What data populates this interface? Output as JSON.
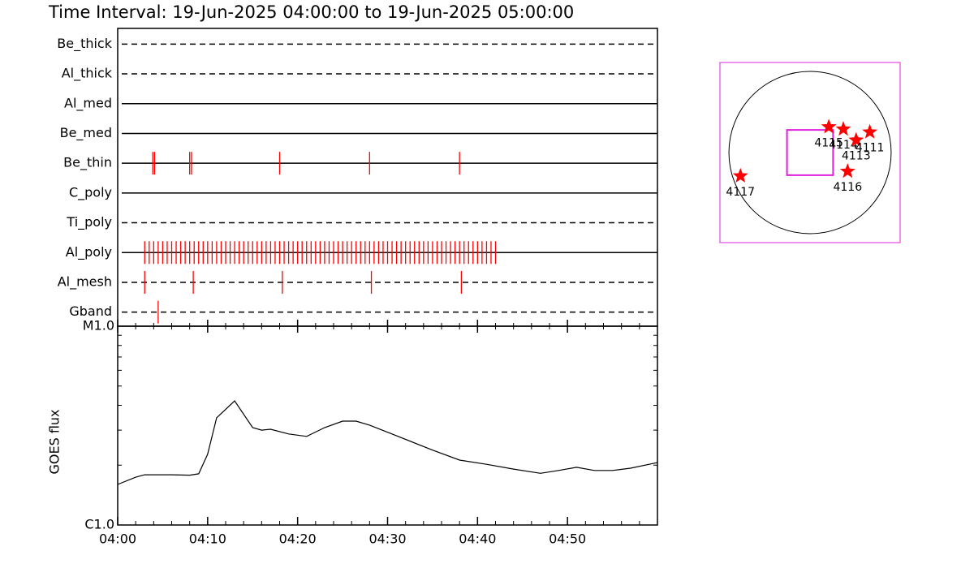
{
  "title": "Time Interval: 19-Jun-2025 04:00:00 to 19-Jun-2025 05:00:00",
  "chart_data": [
    {
      "type": "event",
      "xlim": [
        0,
        60
      ],
      "event_color": "#ff0000",
      "series": [
        {
          "name": "Be_thick",
          "dashed": true,
          "values": []
        },
        {
          "name": "Al_thick",
          "dashed": true,
          "values": []
        },
        {
          "name": "Al_med",
          "dashed": false,
          "values": []
        },
        {
          "name": "Be_med",
          "dashed": false,
          "values": []
        },
        {
          "name": "Be_thin",
          "dashed": false,
          "values": [
            3.9,
            4.1,
            8.0,
            8.2,
            18.0,
            28.0,
            38.0
          ]
        },
        {
          "name": "C_poly",
          "dashed": false,
          "values": []
        },
        {
          "name": "Ti_poly",
          "dashed": true,
          "values": []
        },
        {
          "name": "Al_poly",
          "dashed": false,
          "values": [
            3.0,
            3.5,
            4.0,
            4.5,
            5.0,
            5.5,
            6.0,
            6.5,
            7.0,
            7.5,
            8.0,
            8.5,
            9.0,
            9.5,
            10.0,
            10.5,
            11.0,
            11.5,
            12.0,
            12.5,
            13.0,
            13.5,
            14.0,
            14.5,
            15.0,
            15.5,
            16.0,
            16.5,
            17.0,
            17.5,
            18.0,
            18.5,
            19.0,
            19.5,
            20.0,
            20.5,
            21.0,
            21.5,
            22.0,
            22.5,
            23.0,
            23.5,
            24.0,
            24.5,
            25.0,
            25.5,
            26.0,
            26.5,
            27.0,
            27.5,
            28.0,
            28.5,
            29.0,
            29.5,
            30.0,
            30.5,
            31.0,
            31.5,
            32.0,
            32.5,
            33.0,
            33.5,
            34.0,
            34.5,
            35.0,
            35.5,
            36.0,
            36.5,
            37.0,
            37.5,
            38.0,
            38.5,
            39.0,
            39.5,
            40.0,
            40.5,
            41.0,
            41.5,
            42.0
          ]
        },
        {
          "name": "Al_mesh",
          "dashed": true,
          "values": [
            3.0,
            8.4,
            18.3,
            28.2,
            38.2
          ]
        },
        {
          "name": "Gband",
          "dashed": true,
          "values": [
            4.5
          ]
        }
      ]
    },
    {
      "type": "line",
      "ylabel": "GOES flux",
      "yscale": "log",
      "color": "#000000",
      "x": [
        0,
        2,
        3,
        6,
        8,
        9,
        10,
        11,
        13,
        15,
        16,
        17,
        19,
        21,
        23,
        25,
        26.5,
        28,
        31,
        35,
        38,
        41,
        44,
        47,
        49,
        51,
        53,
        55,
        57,
        60
      ],
      "values": [
        1.6e-06,
        1.74e-06,
        1.79e-06,
        1.79e-06,
        1.78e-06,
        1.81e-06,
        2.27e-06,
        3.46e-06,
        4.21e-06,
        3.09e-06,
        3e-06,
        3.03e-06,
        2.87e-06,
        2.79e-06,
        3.09e-06,
        3.33e-06,
        3.33e-06,
        3.18e-06,
        2.81e-06,
        2.38e-06,
        2.12e-06,
        2.02e-06,
        1.91e-06,
        1.82e-06,
        1.88e-06,
        1.95e-06,
        1.88e-06,
        1.88e-06,
        1.93e-06,
        2.06e-06
      ],
      "xlim": [
        0,
        60
      ],
      "xticks": [
        {
          "value": 0,
          "label": "04:00"
        },
        {
          "value": 10,
          "label": "04:10"
        },
        {
          "value": 20,
          "label": "04:20"
        },
        {
          "value": 30,
          "label": "04:30"
        },
        {
          "value": 40,
          "label": "04:40"
        },
        {
          "value": 50,
          "label": "04:50"
        }
      ],
      "xminorticks": [
        2,
        4,
        6,
        8,
        12,
        14,
        16,
        18,
        22,
        24,
        26,
        28,
        32,
        34,
        36,
        38,
        42,
        44,
        46,
        48,
        52,
        54,
        56,
        58
      ],
      "ylim": [
        1e-06,
        1e-05
      ],
      "yticks": [
        {
          "value": 1e-06,
          "label": "C1.0"
        },
        {
          "value": 1e-05,
          "label": "M1.0"
        }
      ],
      "yminorticks": [
        2e-06,
        3e-06,
        4e-06,
        5e-06,
        6e-06,
        7e-06,
        8e-06,
        9e-06
      ]
    },
    {
      "type": "scatter",
      "xlim": [
        -1055,
        1055
      ],
      "ylim": [
        -1055,
        1055
      ],
      "solar_radius": 950,
      "frame_color": "#e020e0",
      "marker_color": "#ff0000",
      "fov": [
        0,
        0,
        540,
        530
      ],
      "labels": [
        "4115",
        "4114",
        "4113",
        "4111",
        "4116",
        "4117"
      ],
      "x": [
        220,
        390,
        540,
        700,
        440,
        -815
      ],
      "values": [
        300,
        275,
        145,
        240,
        -220,
        -275
      ]
    }
  ]
}
